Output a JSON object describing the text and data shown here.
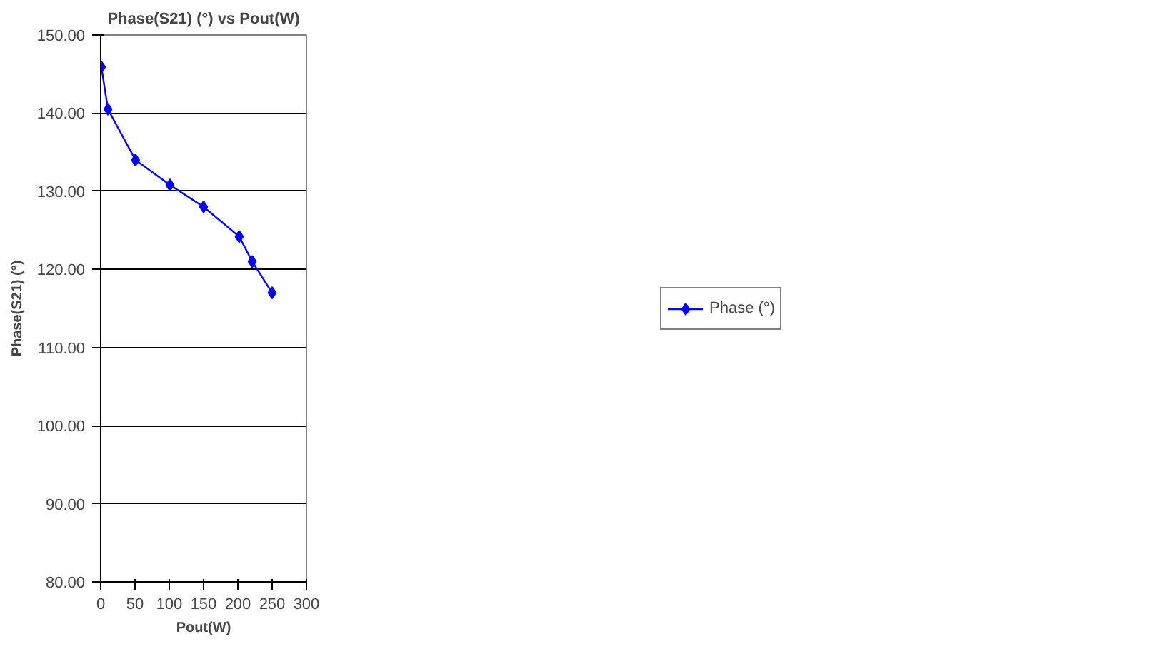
{
  "chart_data": {
    "type": "line",
    "title": "Phase(S21) (°) vs Pout(W)",
    "xlabel": "Pout(W)",
    "ylabel": "Phase(S21) (°)",
    "x": [
      1,
      10.6,
      50.7,
      101,
      150,
      202,
      221,
      250
    ],
    "series": [
      {
        "name": "Phase (°)",
        "color": "#0000ff",
        "values": [
          145.9,
          140.5,
          134.0,
          130.8,
          128.0,
          124.2,
          121.0,
          117.0
        ]
      }
    ],
    "xlim": [
      0,
      300
    ],
    "xticks": [
      0,
      50,
      100,
      150,
      200,
      250,
      300
    ],
    "ylim": [
      80,
      150
    ],
    "yticks": [
      {
        "value": 80,
        "label": "80.00"
      },
      {
        "value": 90,
        "label": "90.00"
      },
      {
        "value": 100,
        "label": "100.00"
      },
      {
        "value": 110,
        "label": "110.00"
      },
      {
        "value": 120,
        "label": "120.00"
      },
      {
        "value": 130,
        "label": "130.00"
      },
      {
        "value": 140,
        "label": "140.00"
      },
      {
        "value": 150,
        "label": "150.00"
      }
    ],
    "grid": "y",
    "legend": "right",
    "marker": "diamond",
    "line_style": "solid"
  }
}
